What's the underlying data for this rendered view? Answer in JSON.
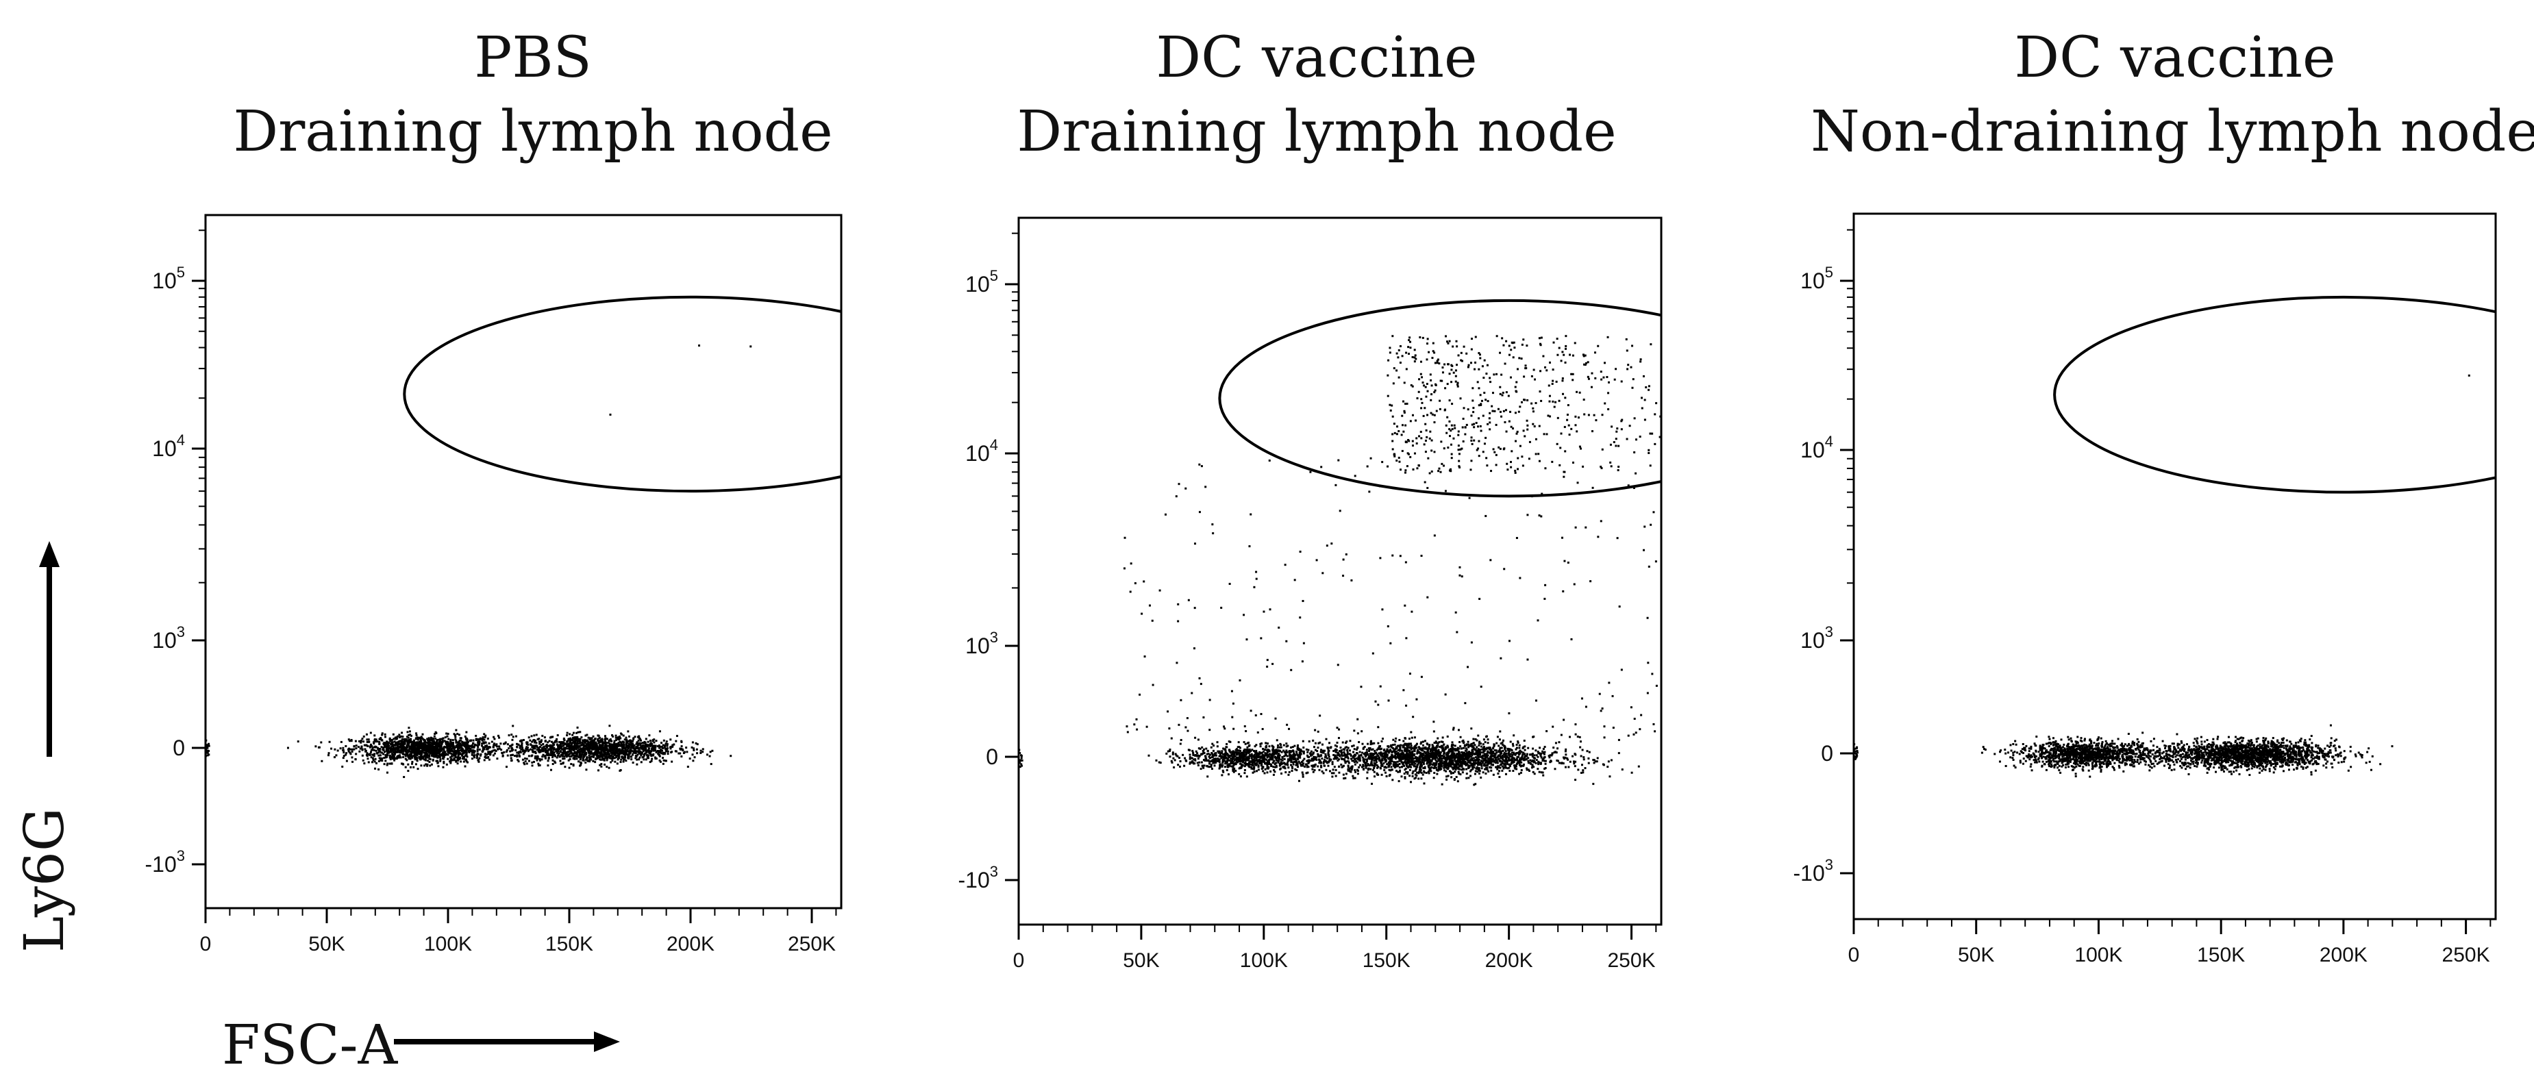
{
  "chart_data": [
    {
      "type": "scatter",
      "title": [
        "PBS",
        "Draining lymph node"
      ],
      "x_ticks": [
        "0",
        "50K",
        "100K",
        "150K",
        "200K",
        "250K"
      ],
      "y_ticks": [
        "10^5",
        "10^4",
        "10^3",
        "0",
        "-10^3"
      ],
      "xlim": [
        0,
        262144
      ],
      "y_scale": "biexponential",
      "gate": {
        "shape": "ellipse",
        "x_center": 200000,
        "y_center": 20000,
        "x_min": 82000,
        "y_min": 6000,
        "y_max": 80000
      },
      "populations": [
        {
          "x_mean": 90000,
          "x_sd": 15000,
          "y_mean": 0,
          "y_sd": 60,
          "n": 1400
        },
        {
          "x_mean": 160000,
          "x_sd": 17000,
          "y_mean": 0,
          "y_sd": 60,
          "n": 1500
        }
      ],
      "gated_events": 3
    },
    {
      "type": "scatter",
      "title": [
        "DC vaccine",
        "Draining lymph node"
      ],
      "x_ticks": [
        "0",
        "50K",
        "100K",
        "150K",
        "200K",
        "250K"
      ],
      "y_ticks": [
        "10^5",
        "10^4",
        "10^3",
        "0",
        "-10^3"
      ],
      "xlim": [
        0,
        262144
      ],
      "y_scale": "biexponential",
      "gate": {
        "shape": "ellipse",
        "x_center": 200000,
        "y_center": 20000,
        "x_min": 82000,
        "y_min": 6000,
        "y_max": 80000
      },
      "populations": [
        {
          "x_mean": 95000,
          "x_sd": 14000,
          "y_mean": 0,
          "y_sd": 55,
          "n": 900
        },
        {
          "x_mean": 170000,
          "x_sd": 25000,
          "y_mean": 0,
          "y_sd": 70,
          "n": 2200
        }
      ],
      "gated_events": 600
    },
    {
      "type": "scatter",
      "title": [
        "DC vaccine",
        "Non-draining lymph node"
      ],
      "x_ticks": [
        "0",
        "50K",
        "100K",
        "150K",
        "200K",
        "250K"
      ],
      "y_ticks": [
        "10^5",
        "10^4",
        "10^3",
        "0",
        "-10^3"
      ],
      "xlim": [
        0,
        262144
      ],
      "y_scale": "biexponential",
      "gate": {
        "shape": "ellipse",
        "x_center": 200000,
        "y_center": 20000,
        "x_min": 82000,
        "y_min": 6000,
        "y_max": 80000
      },
      "populations": [
        {
          "x_mean": 95000,
          "x_sd": 14000,
          "y_mean": 0,
          "y_sd": 55,
          "n": 1200
        },
        {
          "x_mean": 160000,
          "x_sd": 18000,
          "y_mean": 0,
          "y_sd": 60,
          "n": 1800
        }
      ],
      "gated_events": 1
    }
  ],
  "axes": {
    "x_title": "FSC-A",
    "y_title": "Ly6G"
  }
}
